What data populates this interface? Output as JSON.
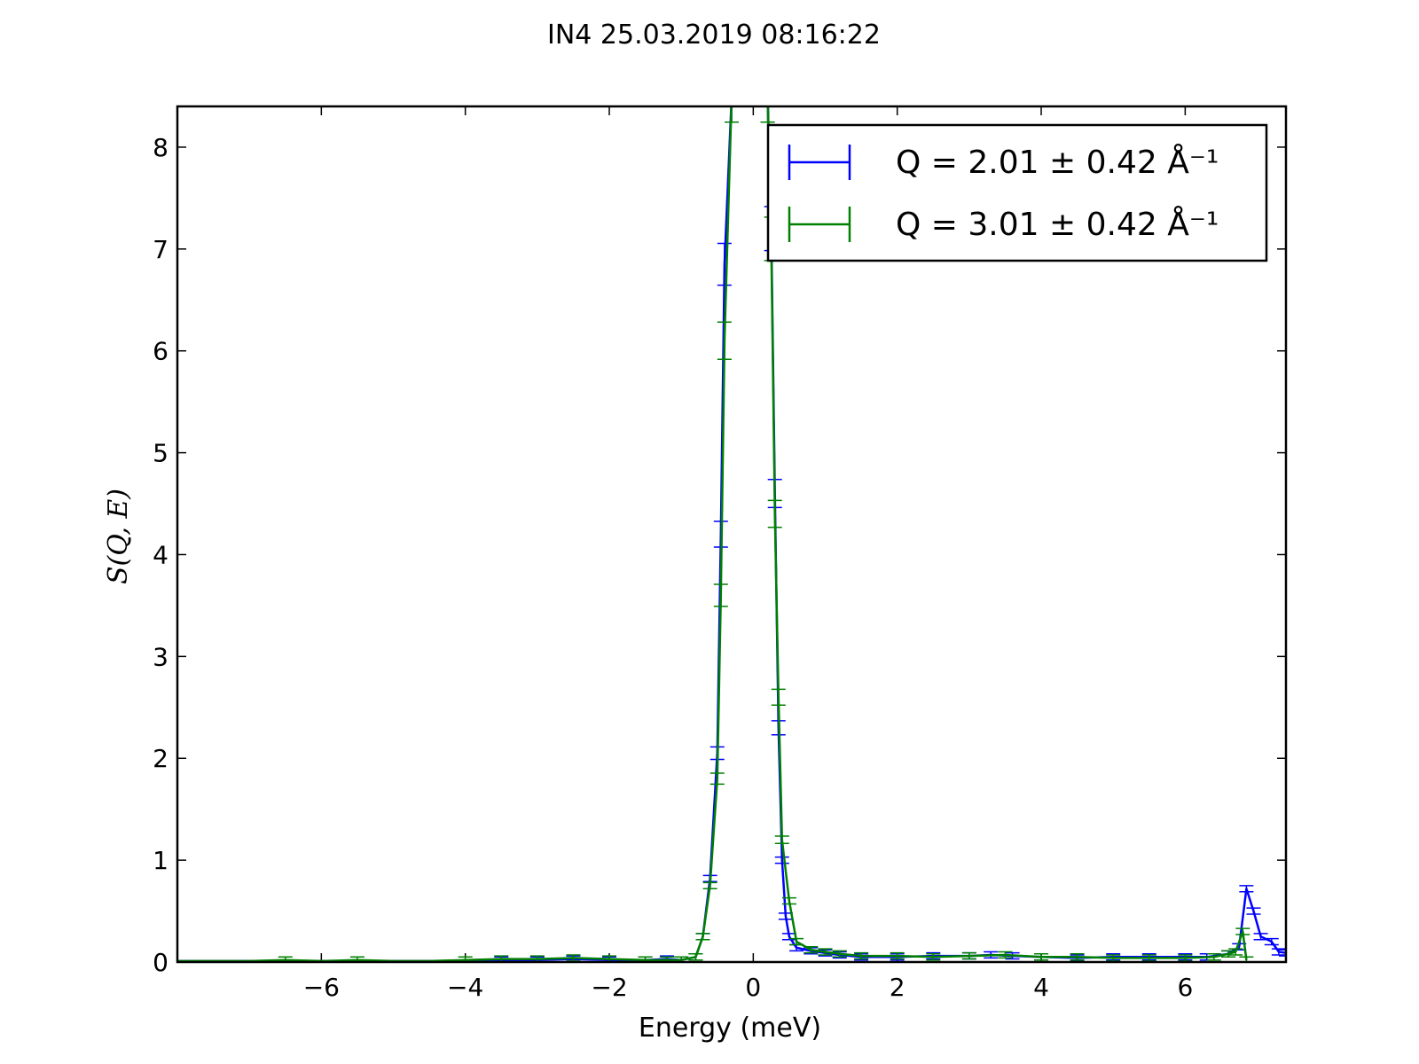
{
  "chart_data": {
    "type": "line",
    "title": "IN4 25.03.2019 08:16:22",
    "xlabel": "Energy (meV)",
    "ylabel": "S(Q, E)",
    "xlim": [
      -8.0,
      7.4
    ],
    "ylim": [
      0,
      8.4
    ],
    "xticks": [
      -6,
      -4,
      -2,
      0,
      2,
      4,
      6
    ],
    "xtick_labels": [
      "−6",
      "−4",
      "−2",
      "0",
      "2",
      "4",
      "6"
    ],
    "yticks": [
      0,
      1,
      2,
      3,
      4,
      5,
      6,
      7,
      8
    ],
    "ytick_labels": [
      "0",
      "1",
      "2",
      "3",
      "4",
      "5",
      "6",
      "7",
      "8"
    ],
    "grid": false,
    "legend_position": "top-right",
    "series": [
      {
        "name": "Q = 2.01 ± 0.42 Å⁻¹",
        "color": "#0000ff",
        "points": [
          [
            -8.0,
            0.01
          ],
          [
            -7.5,
            0.01
          ],
          [
            -7.0,
            0.01
          ],
          [
            -6.5,
            0.01
          ],
          [
            -6.0,
            0.01
          ],
          [
            -5.5,
            0.01
          ],
          [
            -5.0,
            0.01
          ],
          [
            -4.5,
            0.01
          ],
          [
            -4.0,
            0.01
          ],
          [
            -3.5,
            0.02
          ],
          [
            -3.0,
            0.02
          ],
          [
            -2.5,
            0.03
          ],
          [
            -2.0,
            0.02
          ],
          [
            -1.5,
            0.02
          ],
          [
            -1.2,
            0.03
          ],
          [
            -1.0,
            0.02
          ],
          [
            -0.8,
            0.05
          ],
          [
            -0.7,
            0.25
          ],
          [
            -0.6,
            0.82
          ],
          [
            -0.5,
            2.05
          ],
          [
            -0.45,
            4.2
          ],
          [
            -0.4,
            6.85
          ],
          [
            -0.3,
            8.5
          ],
          [
            0.2,
            8.5
          ],
          [
            0.25,
            7.2
          ],
          [
            0.3,
            4.6
          ],
          [
            0.35,
            2.3
          ],
          [
            0.4,
            1.0
          ],
          [
            0.45,
            0.45
          ],
          [
            0.5,
            0.25
          ],
          [
            0.6,
            0.14
          ],
          [
            0.8,
            0.11
          ],
          [
            1.0,
            0.09
          ],
          [
            1.2,
            0.07
          ],
          [
            1.5,
            0.05
          ],
          [
            2.0,
            0.05
          ],
          [
            2.5,
            0.06
          ],
          [
            3.0,
            0.06
          ],
          [
            3.3,
            0.07
          ],
          [
            3.6,
            0.06
          ],
          [
            4.0,
            0.05
          ],
          [
            4.5,
            0.04
          ],
          [
            5.0,
            0.05
          ],
          [
            5.5,
            0.05
          ],
          [
            6.0,
            0.05
          ],
          [
            6.3,
            0.05
          ],
          [
            6.6,
            0.08
          ],
          [
            6.75,
            0.15
          ],
          [
            6.85,
            0.72
          ],
          [
            6.95,
            0.5
          ],
          [
            7.05,
            0.25
          ],
          [
            7.2,
            0.2
          ],
          [
            7.3,
            0.1
          ],
          [
            7.4,
            0.09
          ]
        ]
      },
      {
        "name": "Q = 3.01 ± 0.42 Å⁻¹",
        "color": "#008000",
        "points": [
          [
            -8.0,
            0.01
          ],
          [
            -7.5,
            0.01
          ],
          [
            -7.0,
            0.01
          ],
          [
            -6.5,
            0.02
          ],
          [
            -6.0,
            0.01
          ],
          [
            -5.5,
            0.02
          ],
          [
            -5.0,
            0.01
          ],
          [
            -4.5,
            0.01
          ],
          [
            -4.0,
            0.02
          ],
          [
            -3.5,
            0.03
          ],
          [
            -3.0,
            0.03
          ],
          [
            -2.5,
            0.04
          ],
          [
            -2.0,
            0.03
          ],
          [
            -1.5,
            0.02
          ],
          [
            -1.2,
            0.02
          ],
          [
            -1.0,
            0.02
          ],
          [
            -0.8,
            0.05
          ],
          [
            -0.7,
            0.25
          ],
          [
            -0.6,
            0.75
          ],
          [
            -0.5,
            1.8
          ],
          [
            -0.45,
            3.6
          ],
          [
            -0.4,
            6.1
          ],
          [
            -0.3,
            8.5
          ],
          [
            0.2,
            8.5
          ],
          [
            0.25,
            7.1
          ],
          [
            0.3,
            4.4
          ],
          [
            0.35,
            2.6
          ],
          [
            0.4,
            1.2
          ],
          [
            0.5,
            0.6
          ],
          [
            0.6,
            0.2
          ],
          [
            0.8,
            0.12
          ],
          [
            1.0,
            0.1
          ],
          [
            1.2,
            0.08
          ],
          [
            1.5,
            0.06
          ],
          [
            2.0,
            0.06
          ],
          [
            2.5,
            0.05
          ],
          [
            3.0,
            0.06
          ],
          [
            3.5,
            0.07
          ],
          [
            4.0,
            0.05
          ],
          [
            4.5,
            0.05
          ],
          [
            5.0,
            0.04
          ],
          [
            5.5,
            0.04
          ],
          [
            6.0,
            0.04
          ],
          [
            6.4,
            0.05
          ],
          [
            6.6,
            0.08
          ],
          [
            6.7,
            0.1
          ],
          [
            6.8,
            0.3
          ],
          [
            6.85,
            0.02
          ]
        ]
      }
    ]
  }
}
